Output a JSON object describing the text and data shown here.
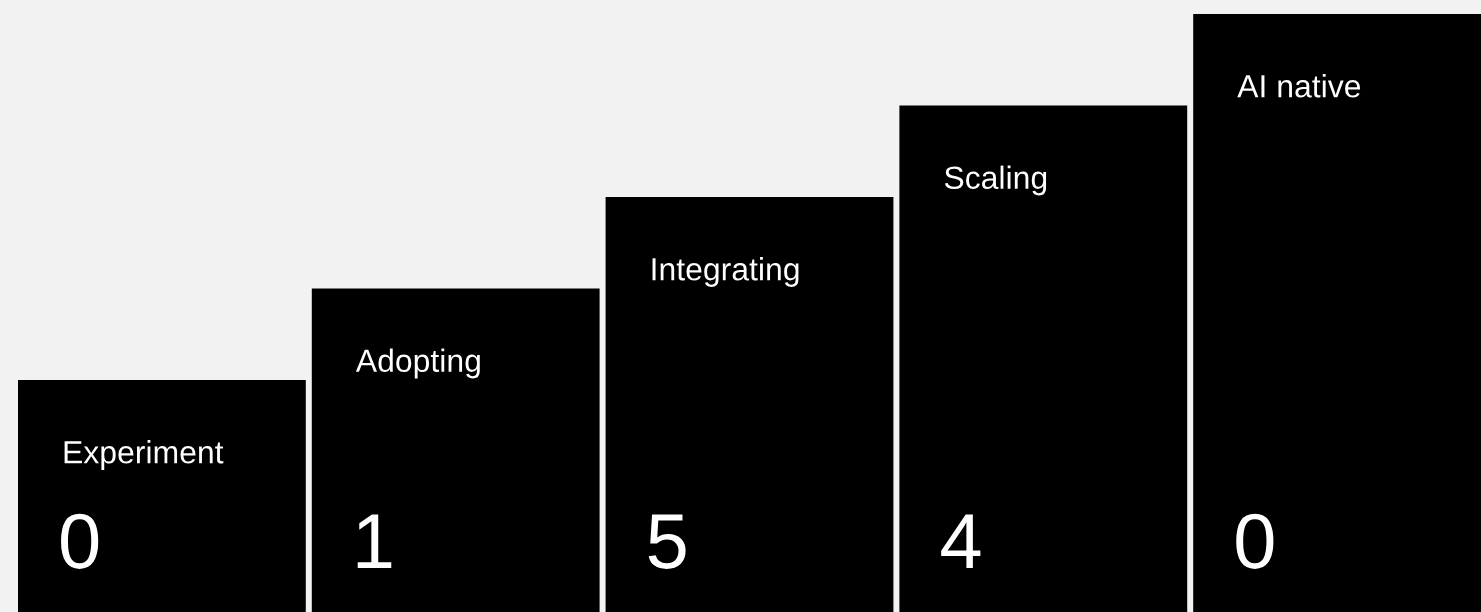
{
  "chart_data": {
    "type": "other",
    "categories": [
      "Experiment",
      "Adopting",
      "Integrating",
      "Scaling",
      "AI native"
    ],
    "values": [
      0,
      1,
      5,
      4,
      0
    ],
    "color": "#000000",
    "data_labels": true
  }
}
